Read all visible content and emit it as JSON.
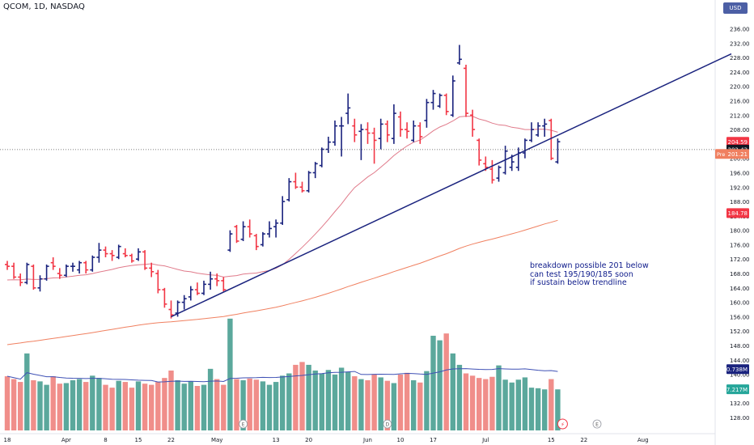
{
  "header": {
    "title": "QCOM, 1D, NASDAQ",
    "currency": "USD"
  },
  "annotation": {
    "line1": "breakdown possible 201 below",
    "line2": "can test 195/190/185 soon",
    "line3": "if sustain below trendline"
  },
  "colors": {
    "up": "#1a237e",
    "down": "#f23645",
    "vol_up": "#5ba89c",
    "vol_down": "#f08e8a",
    "ma20": "#e07a8a",
    "ma100": "#f08060",
    "trendline": "#1a237e",
    "vol_ma": "#3f51b5"
  },
  "chart_data": {
    "type": "bar",
    "symbol": "QCOM",
    "interval": "1D",
    "exchange": "NASDAQ",
    "ylim": [
      124,
      238
    ],
    "y_ticks": [
      128,
      132,
      136,
      140,
      144,
      148,
      152,
      156,
      160,
      164,
      168,
      172,
      176,
      180,
      184,
      188,
      192,
      196,
      200,
      204,
      208,
      212,
      216,
      220,
      224,
      228,
      232,
      236
    ],
    "x_ticks": [
      {
        "label": "18",
        "i": 0
      },
      {
        "label": "Apr",
        "i": 9
      },
      {
        "label": "8",
        "i": 15
      },
      {
        "label": "15",
        "i": 20
      },
      {
        "label": "22",
        "i": 25
      },
      {
        "label": "May",
        "i": 32
      },
      {
        "label": "13",
        "i": 41
      },
      {
        "label": "20",
        "i": 46
      },
      {
        "label": "Jun",
        "i": 55
      },
      {
        "label": "10",
        "i": 60
      },
      {
        "label": "17",
        "i": 65
      },
      {
        "label": "Jul",
        "i": 73
      },
      {
        "label": "15",
        "i": 83
      },
      {
        "label": "22",
        "i": 88
      },
      {
        "label": "Aug",
        "i": 97
      }
    ],
    "price_labels": [
      {
        "value": "204.59",
        "color": "#f23645"
      },
      {
        "value": "202.43",
        "color": "#131722"
      },
      {
        "value": "201.21",
        "color": "#f08060",
        "prefix": "Pre"
      },
      {
        "value": "184.78",
        "color": "#f23645"
      },
      {
        "value": "10.738M",
        "color": "#1a237e"
      },
      {
        "value": "7.217M",
        "color": "#26a69a"
      }
    ],
    "ohlc": [
      [
        170.5,
        171.5,
        169.0,
        170.0
      ],
      [
        170.0,
        171.0,
        166.5,
        167.0
      ],
      [
        167.0,
        168.0,
        164.5,
        165.5
      ],
      [
        165.5,
        171.0,
        165.0,
        170.5
      ],
      [
        170.0,
        170.5,
        163.5,
        164.0
      ],
      [
        164.0,
        167.5,
        163.0,
        166.5
      ],
      [
        166.5,
        170.5,
        166.0,
        170.0
      ],
      [
        171.0,
        172.5,
        169.0,
        170.0
      ],
      [
        168.0,
        169.5,
        166.5,
        167.5
      ],
      [
        167.5,
        170.5,
        167.0,
        170.0
      ],
      [
        170.0,
        171.0,
        168.5,
        170.0
      ],
      [
        169.0,
        171.5,
        168.0,
        171.0
      ],
      [
        171.0,
        171.5,
        168.0,
        169.0
      ],
      [
        169.0,
        173.0,
        168.5,
        172.5
      ],
      [
        172.5,
        176.5,
        171.0,
        174.5
      ],
      [
        174.5,
        175.5,
        172.5,
        173.5
      ],
      [
        173.5,
        174.5,
        171.5,
        173.0
      ],
      [
        172.5,
        176.0,
        172.0,
        175.5
      ],
      [
        173.5,
        175.0,
        172.5,
        173.0
      ],
      [
        173.0,
        173.5,
        171.0,
        171.5
      ],
      [
        172.0,
        175.0,
        171.5,
        174.0
      ],
      [
        174.0,
        174.5,
        169.0,
        169.5
      ],
      [
        169.5,
        171.0,
        167.0,
        168.5
      ],
      [
        168.0,
        169.0,
        162.5,
        163.5
      ],
      [
        163.5,
        164.0,
        158.5,
        159.5
      ],
      [
        158.0,
        160.5,
        155.5,
        156.5
      ],
      [
        157.0,
        160.5,
        156.0,
        160.0
      ],
      [
        160.0,
        162.0,
        158.0,
        161.0
      ],
      [
        161.5,
        164.5,
        160.5,
        163.5
      ],
      [
        163.5,
        165.5,
        162.0,
        162.5
      ],
      [
        162.5,
        166.0,
        162.0,
        165.0
      ],
      [
        165.0,
        168.5,
        163.5,
        166.5
      ],
      [
        166.5,
        168.0,
        164.5,
        166.0
      ],
      [
        166.0,
        167.0,
        163.0,
        163.5
      ],
      [
        174.5,
        180.0,
        174.0,
        179.0
      ],
      [
        181.0,
        181.5,
        176.5,
        177.0
      ],
      [
        177.5,
        182.5,
        177.0,
        181.0
      ],
      [
        181.0,
        183.0,
        178.0,
        179.0
      ],
      [
        178.5,
        179.0,
        174.5,
        175.5
      ],
      [
        176.0,
        179.5,
        175.5,
        179.0
      ],
      [
        179.0,
        182.5,
        178.0,
        180.5
      ],
      [
        181.0,
        183.0,
        178.0,
        182.0
      ],
      [
        182.0,
        189.5,
        181.5,
        188.0
      ],
      [
        188.5,
        194.5,
        188.0,
        193.5
      ],
      [
        193.5,
        196.0,
        191.5,
        192.0
      ],
      [
        192.0,
        193.5,
        190.5,
        191.0
      ],
      [
        191.0,
        196.5,
        190.5,
        196.0
      ],
      [
        196.0,
        199.0,
        194.5,
        198.5
      ],
      [
        198.0,
        203.0,
        197.5,
        202.5
      ],
      [
        202.5,
        206.0,
        201.5,
        204.5
      ],
      [
        204.5,
        210.5,
        203.5,
        209.0
      ],
      [
        209.0,
        211.5,
        200.5,
        209.0
      ],
      [
        212.5,
        218.0,
        209.5,
        214.0
      ],
      [
        209.0,
        211.0,
        204.5,
        206.5
      ],
      [
        207.5,
        209.5,
        199.5,
        208.0
      ],
      [
        208.0,
        210.0,
        204.0,
        207.0
      ],
      [
        207.0,
        208.5,
        198.5,
        205.0
      ],
      [
        205.5,
        211.0,
        202.5,
        209.5
      ],
      [
        209.5,
        210.5,
        204.5,
        206.5
      ],
      [
        205.5,
        215.0,
        204.0,
        212.5
      ],
      [
        211.5,
        213.0,
        206.0,
        208.0
      ],
      [
        208.0,
        210.0,
        205.5,
        207.5
      ],
      [
        205.0,
        210.5,
        204.5,
        209.0
      ],
      [
        209.0,
        210.0,
        204.0,
        206.0
      ],
      [
        210.5,
        216.5,
        208.5,
        215.5
      ],
      [
        215.5,
        219.0,
        213.5,
        218.0
      ],
      [
        214.5,
        218.0,
        214.0,
        217.5
      ],
      [
        217.5,
        218.0,
        212.0,
        213.0
      ],
      [
        212.0,
        223.0,
        211.5,
        221.5
      ],
      [
        226.5,
        231.5,
        226.0,
        227.5
      ],
      [
        225.0,
        226.0,
        211.5,
        212.5
      ],
      [
        212.0,
        213.5,
        206.0,
        208.0
      ],
      [
        205.0,
        205.5,
        198.0,
        199.5
      ],
      [
        198.5,
        200.5,
        196.5,
        197.5
      ],
      [
        197.0,
        199.5,
        193.0,
        194.0
      ],
      [
        194.5,
        198.0,
        193.5,
        197.5
      ],
      [
        196.0,
        203.5,
        195.5,
        202.0
      ],
      [
        197.5,
        201.0,
        196.5,
        199.0
      ],
      [
        197.5,
        203.0,
        196.5,
        201.5
      ],
      [
        201.5,
        205.5,
        200.0,
        205.0
      ],
      [
        205.0,
        210.0,
        204.5,
        208.0
      ],
      [
        206.5,
        210.0,
        206.0,
        209.0
      ],
      [
        209.0,
        211.0,
        206.0,
        209.5
      ],
      [
        210.5,
        211.0,
        199.5,
        200.0
      ],
      [
        199.0,
        205.5,
        198.5,
        204.6
      ]
    ],
    "volume_millions": [
      9.5,
      9.0,
      8.5,
      13.5,
      8.8,
      8.6,
      8.0,
      9.5,
      8.2,
      8.3,
      8.8,
      9.0,
      8.5,
      9.6,
      9.2,
      8.0,
      7.5,
      8.7,
      8.5,
      7.5,
      8.6,
      8.2,
      8.0,
      8.5,
      9.2,
      10.5,
      8.8,
      8.2,
      8.6,
      7.8,
      8.0,
      10.8,
      9.0,
      8.0,
      19.6,
      9.0,
      8.8,
      9.1,
      8.9,
      8.6,
      8.0,
      8.5,
      9.6,
      10.0,
      11.5,
      12.0,
      11.5,
      10.5,
      10.0,
      10.6,
      9.8,
      11.0,
      10.3,
      9.5,
      9.0,
      8.8,
      9.8,
      9.3,
      8.7,
      8.3,
      9.8,
      10.1,
      8.8,
      8.4,
      10.4,
      16.6,
      15.8,
      17.0,
      13.5,
      11.5,
      10.0,
      9.6,
      9.2,
      9.0,
      9.4,
      11.4,
      8.9,
      8.4,
      8.9,
      9.3,
      7.5,
      7.4,
      7.2,
      9.0,
      7.2
    ],
    "volume_scale": {
      "ticks": [
        "10.738M",
        "7.217M"
      ]
    },
    "overlays": {
      "ma_short": "20-day moving average (pink)",
      "ma_long": "100-day moving average (orange)",
      "trendline": {
        "from": {
          "i": 25,
          "price": 156.0
        },
        "to": {
          "i": 97,
          "price": 217.5
        }
      },
      "last_price_line": 202.43
    }
  }
}
